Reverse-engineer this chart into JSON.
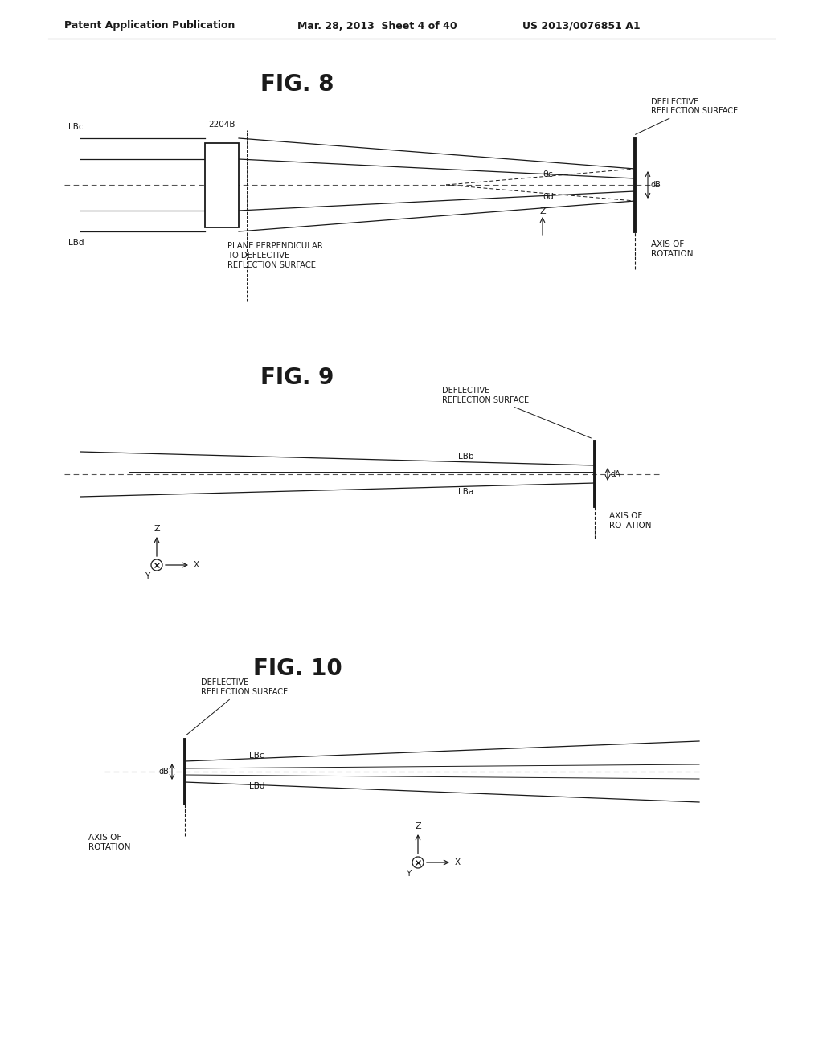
{
  "bg_color": "#ffffff",
  "header_left": "Patent Application Publication",
  "header_mid": "Mar. 28, 2013  Sheet 4 of 40",
  "header_right": "US 2013/0076851 A1",
  "fig8_title": "FIG. 8",
  "fig9_title": "FIG. 9",
  "fig10_title": "FIG. 10"
}
